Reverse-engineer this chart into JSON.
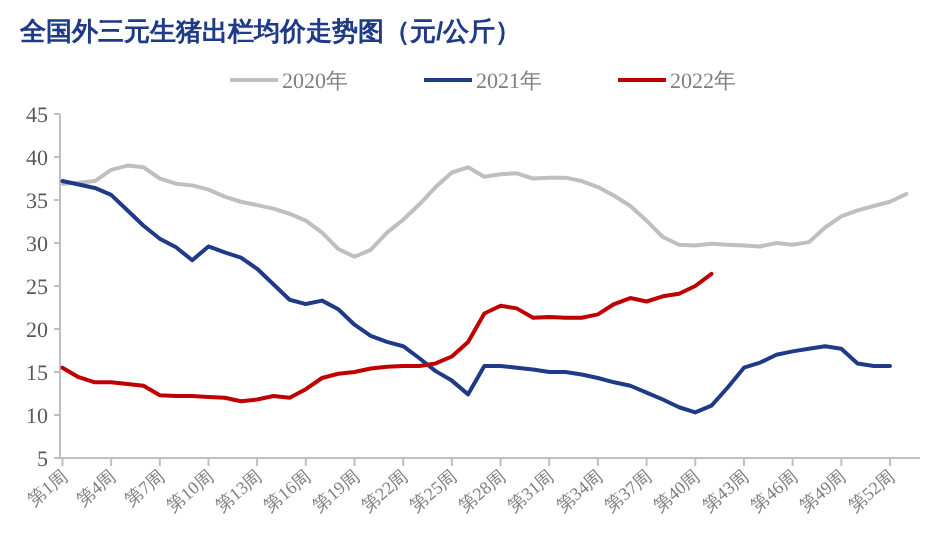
{
  "chart_data": {
    "type": "line",
    "title": "全国外三元生猪出栏均价走势图（元/公斤）",
    "categories": [
      "第1周",
      null,
      null,
      "第4周",
      null,
      null,
      "第7周",
      null,
      null,
      "第10周",
      null,
      null,
      "第13周",
      null,
      null,
      "第16周",
      null,
      null,
      "第19周",
      null,
      null,
      "第22周",
      null,
      null,
      "第25周",
      null,
      null,
      "第28周",
      null,
      null,
      "第31周",
      null,
      null,
      "第34周",
      null,
      null,
      "第37周",
      null,
      null,
      "第40周",
      null,
      null,
      "第43周",
      null,
      null,
      "第46周",
      null,
      null,
      "第49周",
      null,
      null,
      "第52周",
      null
    ],
    "series": [
      {
        "name": "2020年",
        "color": "#bfbfbf",
        "values": [
          36.9,
          37.0,
          37.2,
          38.5,
          39.0,
          38.8,
          37.5,
          36.9,
          36.7,
          36.2,
          35.4,
          34.8,
          34.4,
          34.0,
          33.4,
          32.6,
          31.2,
          29.3,
          28.4,
          29.2,
          31.2,
          32.7,
          34.5,
          36.5,
          38.2,
          38.8,
          37.7,
          38.0,
          38.1,
          37.5,
          37.6,
          37.6,
          37.2,
          36.5,
          35.5,
          34.3,
          32.6,
          30.7,
          29.8,
          29.7,
          29.9,
          29.8,
          29.7,
          29.6,
          30.0,
          29.8,
          30.1,
          31.8,
          33.1,
          33.8,
          34.3,
          34.8,
          35.7
        ]
      },
      {
        "name": "2021年",
        "color": "#1f3b87",
        "values": [
          37.2,
          36.8,
          36.4,
          35.6,
          33.8,
          32.0,
          30.5,
          29.5,
          28.0,
          29.6,
          28.9,
          28.3,
          27.0,
          25.2,
          23.4,
          22.9,
          23.3,
          22.3,
          20.5,
          19.2,
          18.5,
          18.0,
          16.6,
          15.1,
          14.0,
          12.4,
          15.7,
          15.7,
          15.5,
          15.3,
          15.0,
          15.0,
          14.7,
          14.3,
          13.8,
          13.4,
          12.6,
          11.8,
          10.9,
          10.3,
          11.1,
          13.2,
          15.5,
          16.1,
          17.0,
          17.4,
          17.7,
          18.0,
          17.7,
          16.0,
          15.7,
          15.7,
          null
        ]
      },
      {
        "name": "2022年",
        "color": "#c00000",
        "values": [
          15.5,
          14.4,
          13.8,
          13.8,
          13.6,
          13.4,
          12.3,
          12.2,
          12.2,
          12.1,
          12.0,
          11.6,
          11.8,
          12.2,
          12.0,
          13.0,
          14.3,
          14.8,
          15.0,
          15.4,
          15.6,
          15.7,
          15.7,
          16.0,
          16.8,
          18.5,
          21.8,
          22.7,
          22.4,
          21.3,
          21.4,
          21.3,
          21.3,
          21.7,
          22.9,
          23.6,
          23.2,
          23.8,
          24.1,
          25.0,
          26.4,
          null,
          null,
          null,
          null,
          null,
          null,
          null,
          null,
          null,
          null,
          null,
          null
        ]
      }
    ],
    "ylim": [
      5,
      45
    ],
    "yticks": [
      5,
      10,
      15,
      20,
      25,
      30,
      35,
      40,
      45
    ],
    "legend": "top",
    "grid": false,
    "marker": "none",
    "line_style": "solid"
  }
}
